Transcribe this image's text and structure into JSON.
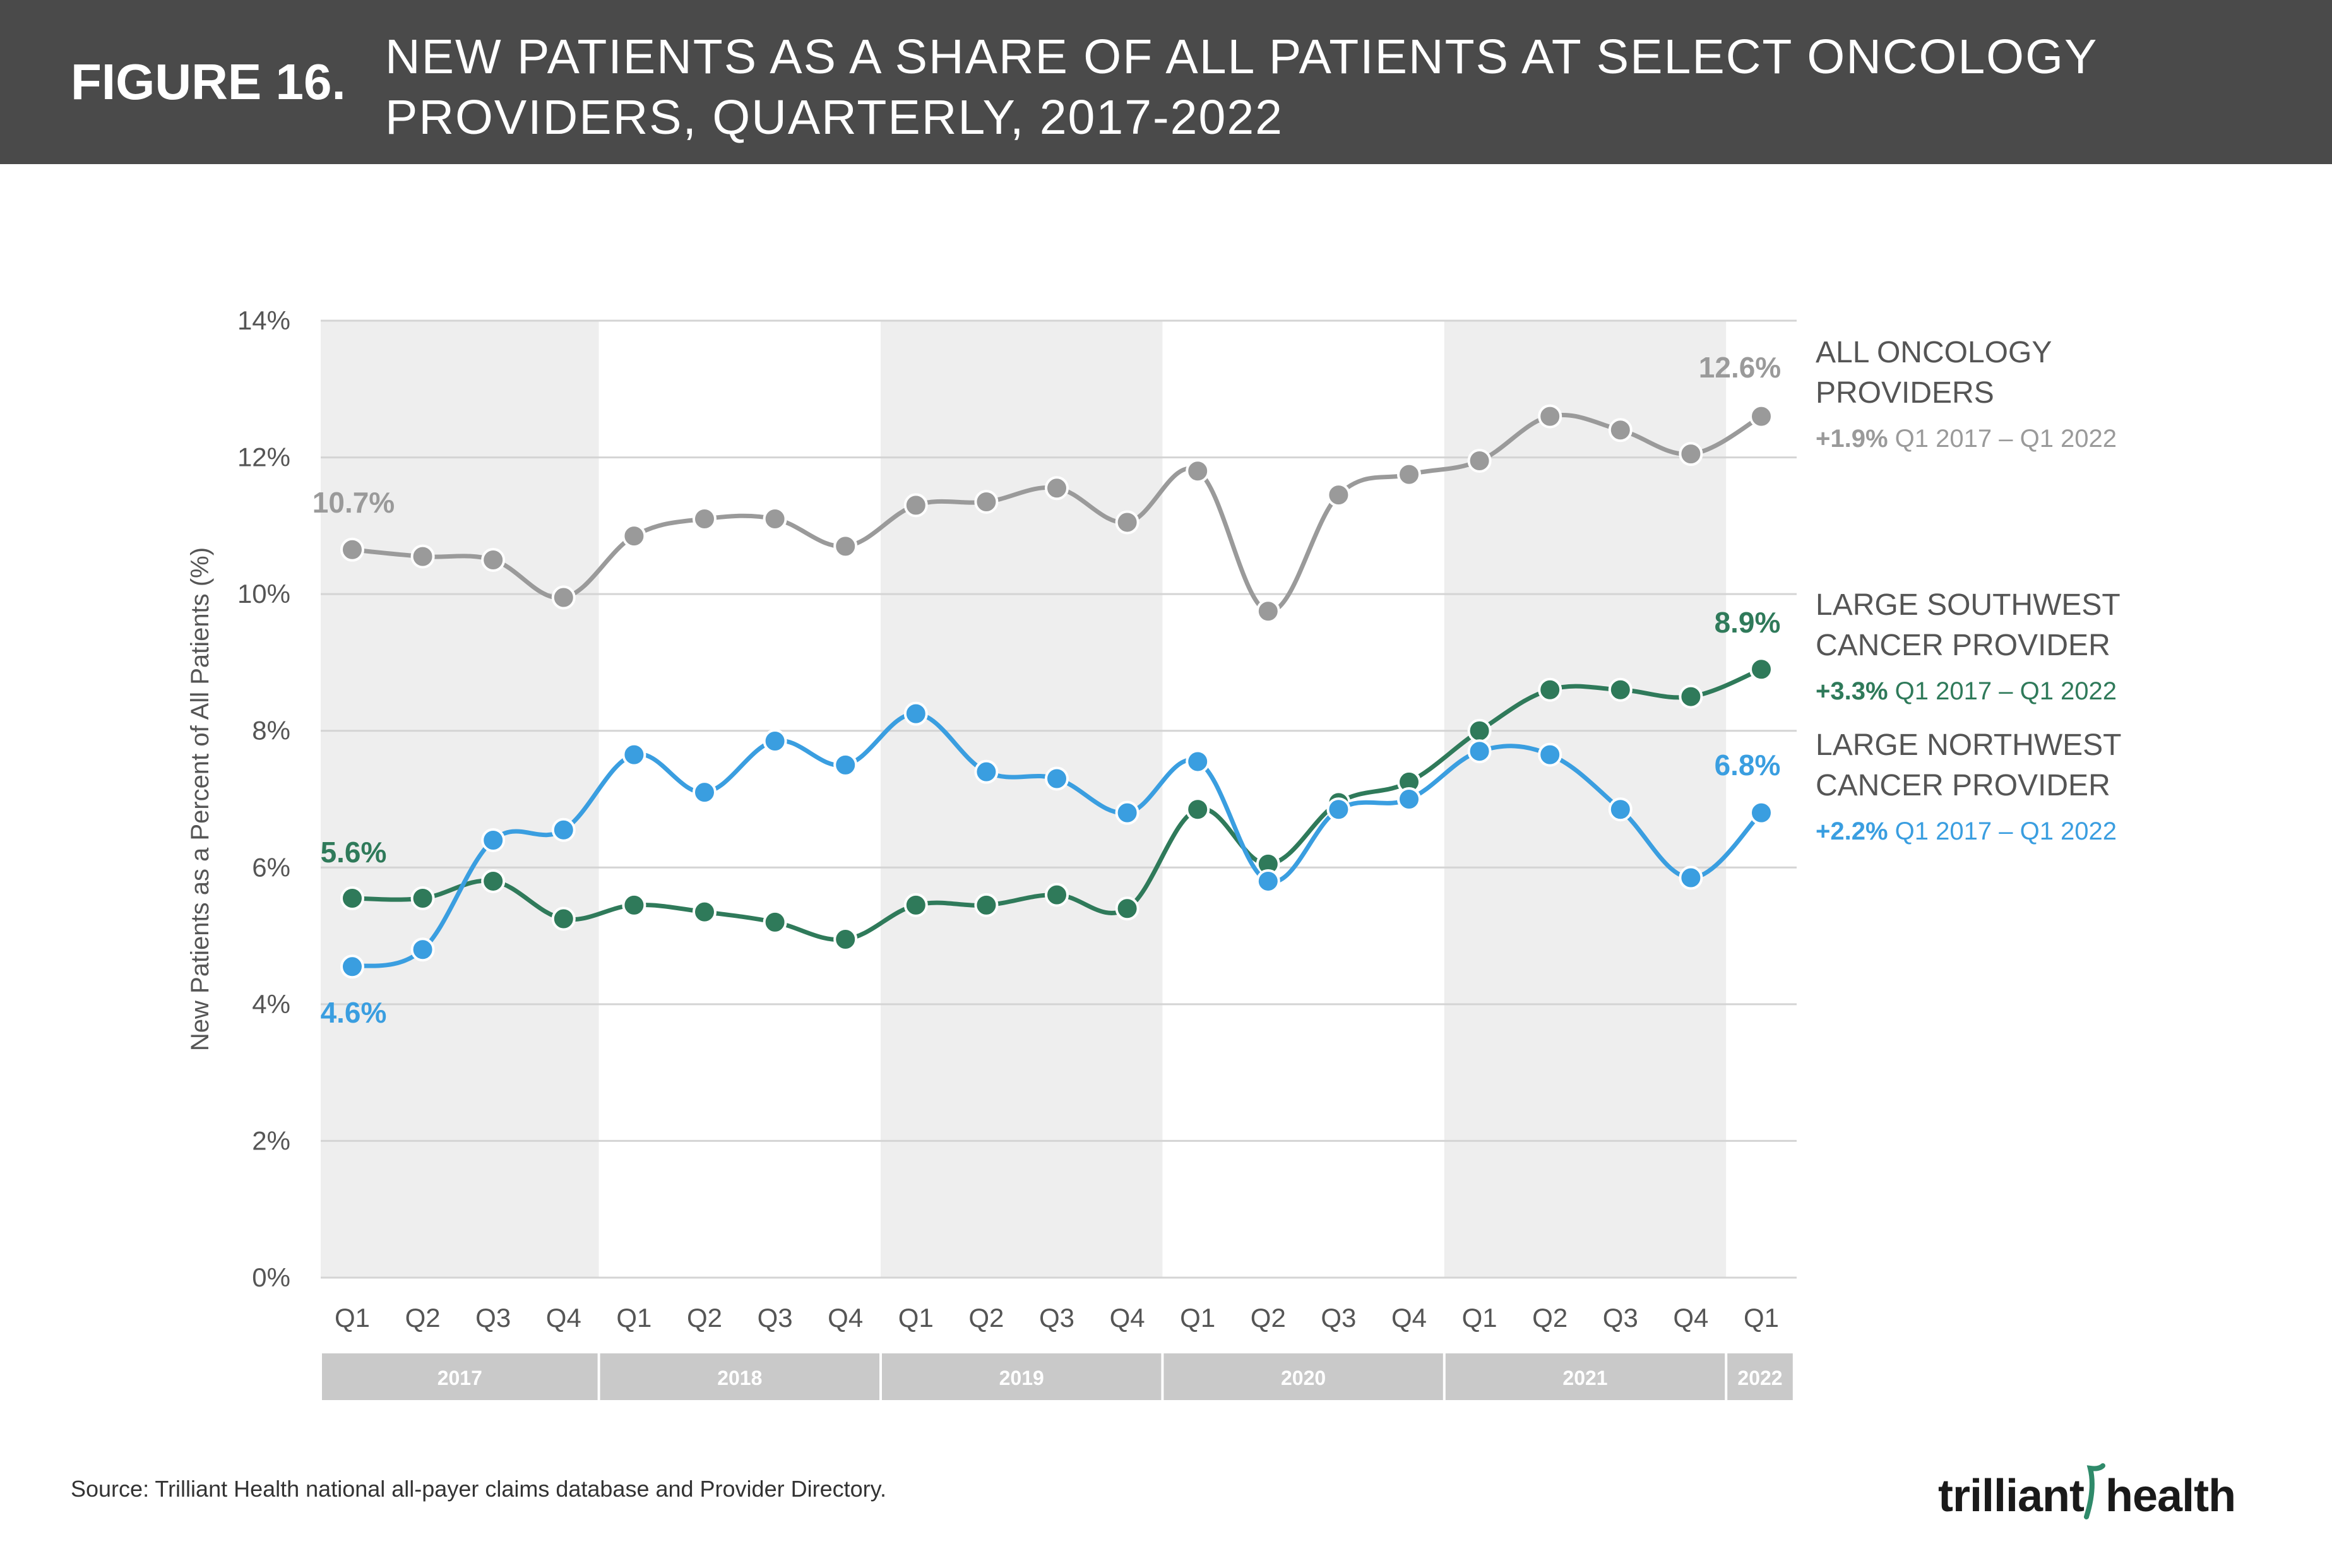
{
  "header": {
    "figure_label": "FIGURE 16.",
    "title_line1": "NEW PATIENTS AS A SHARE OF ALL PATIENTS AT SELECT ONCOLOGY",
    "title_line2": "PROVIDERS, QUARTERLY, 2017-2022"
  },
  "source": "Source: Trilliant Health national all-payer claims database and Provider Directory.",
  "logo": {
    "part1": "trilliant",
    "part2": "health"
  },
  "colors": {
    "all_oncology": "#9a9a9a",
    "southwest": "#2f7a5a",
    "northwest": "#3a9ee0",
    "band": "#eeeeee",
    "year_bar": "#c9c9c9",
    "logo_accent": "#2f8a6a"
  },
  "chart_data": {
    "type": "line",
    "ylabel": "New Patients as a Percent of All Patients (%)",
    "ylim": [
      0,
      14
    ],
    "yticks": [
      "0%",
      "2%",
      "4%",
      "6%",
      "8%",
      "10%",
      "12%",
      "14%"
    ],
    "grid": true,
    "categories": [
      "Q1",
      "Q2",
      "Q3",
      "Q4",
      "Q1",
      "Q2",
      "Q3",
      "Q4",
      "Q1",
      "Q2",
      "Q3",
      "Q4",
      "Q1",
      "Q2",
      "Q3",
      "Q4",
      "Q1",
      "Q2",
      "Q3",
      "Q4",
      "Q1"
    ],
    "years": [
      {
        "label": "2017",
        "quarters": 4
      },
      {
        "label": "2018",
        "quarters": 4
      },
      {
        "label": "2019",
        "quarters": 4
      },
      {
        "label": "2020",
        "quarters": 4
      },
      {
        "label": "2021",
        "quarters": 4
      },
      {
        "label": "2022",
        "quarters": 1
      }
    ],
    "series": [
      {
        "key": "all",
        "color_key": "all_oncology",
        "values": [
          10.65,
          10.55,
          10.5,
          9.95,
          10.85,
          11.1,
          11.1,
          10.7,
          11.3,
          11.35,
          11.55,
          11.05,
          11.8,
          9.75,
          11.45,
          11.75,
          11.95,
          12.6,
          12.4,
          12.05,
          12.6
        ],
        "start_label": "10.7%",
        "end_label": "12.6%",
        "legend_line1": "ALL ONCOLOGY",
        "legend_line2": "PROVIDERS",
        "legend_change": "+1.9%",
        "legend_period": "Q1 2017 – Q1 2022"
      },
      {
        "key": "southwest",
        "color_key": "southwest",
        "values": [
          5.55,
          5.55,
          5.8,
          5.25,
          5.45,
          5.35,
          5.2,
          4.95,
          5.45,
          5.45,
          5.6,
          5.4,
          6.85,
          6.05,
          6.95,
          7.25,
          8.0,
          8.6,
          8.6,
          8.5,
          8.9
        ],
        "start_label": "5.6%",
        "end_label": "8.9%",
        "legend_line1": "LARGE SOUTHWEST",
        "legend_line2": "CANCER PROVIDER",
        "legend_change": "+3.3%",
        "legend_period": "Q1 2017 – Q1 2022"
      },
      {
        "key": "northwest",
        "color_key": "northwest",
        "values": [
          4.55,
          4.8,
          6.4,
          6.55,
          7.65,
          7.1,
          7.85,
          7.5,
          8.25,
          7.4,
          7.3,
          6.8,
          7.55,
          5.8,
          6.85,
          7.0,
          7.7,
          7.65,
          6.85,
          5.85,
          6.8
        ],
        "start_label": "4.6%",
        "end_label": "6.8%",
        "legend_line1": "LARGE NORTHWEST",
        "legend_line2": "CANCER PROVIDER",
        "legend_change": "+2.2%",
        "legend_period": "Q1 2017 – Q1 2022"
      }
    ]
  }
}
